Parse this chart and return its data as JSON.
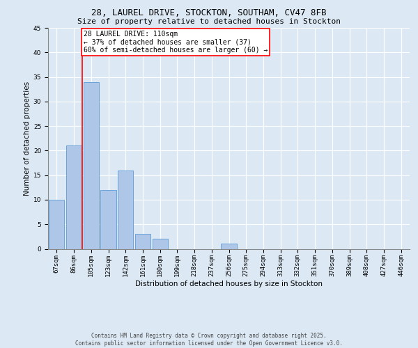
{
  "title_line1": "28, LAUREL DRIVE, STOCKTON, SOUTHAM, CV47 8FB",
  "title_line2": "Size of property relative to detached houses in Stockton",
  "xlabel": "Distribution of detached houses by size in Stockton",
  "ylabel": "Number of detached properties",
  "categories": [
    "67sqm",
    "86sqm",
    "105sqm",
    "123sqm",
    "142sqm",
    "161sqm",
    "180sqm",
    "199sqm",
    "218sqm",
    "237sqm",
    "256sqm",
    "275sqm",
    "294sqm",
    "313sqm",
    "332sqm",
    "351sqm",
    "370sqm",
    "389sqm",
    "408sqm",
    "427sqm",
    "446sqm"
  ],
  "values": [
    10,
    21,
    34,
    12,
    16,
    3,
    2,
    0,
    0,
    0,
    1,
    0,
    0,
    0,
    0,
    0,
    0,
    0,
    0,
    0,
    0
  ],
  "bar_color": "#aec6e8",
  "bar_edgecolor": "#5b9bd5",
  "annotation_text": "28 LAUREL DRIVE: 110sqm\n← 37% of detached houses are smaller (37)\n60% of semi-detached houses are larger (60) →",
  "annotation_box_color": "white",
  "annotation_box_edgecolor": "red",
  "ylim": [
    0,
    45
  ],
  "yticks": [
    0,
    5,
    10,
    15,
    20,
    25,
    30,
    35,
    40,
    45
  ],
  "background_color": "#dce9f5",
  "plot_background": "#dce9f5",
  "footer_line1": "Contains HM Land Registry data © Crown copyright and database right 2025.",
  "footer_line2": "Contains public sector information licensed under the Open Government Licence v3.0.",
  "title_fontsize": 9,
  "title2_fontsize": 8,
  "axis_label_fontsize": 7.5,
  "tick_fontsize": 6.5,
  "annotation_fontsize": 7,
  "footer_fontsize": 5.5
}
